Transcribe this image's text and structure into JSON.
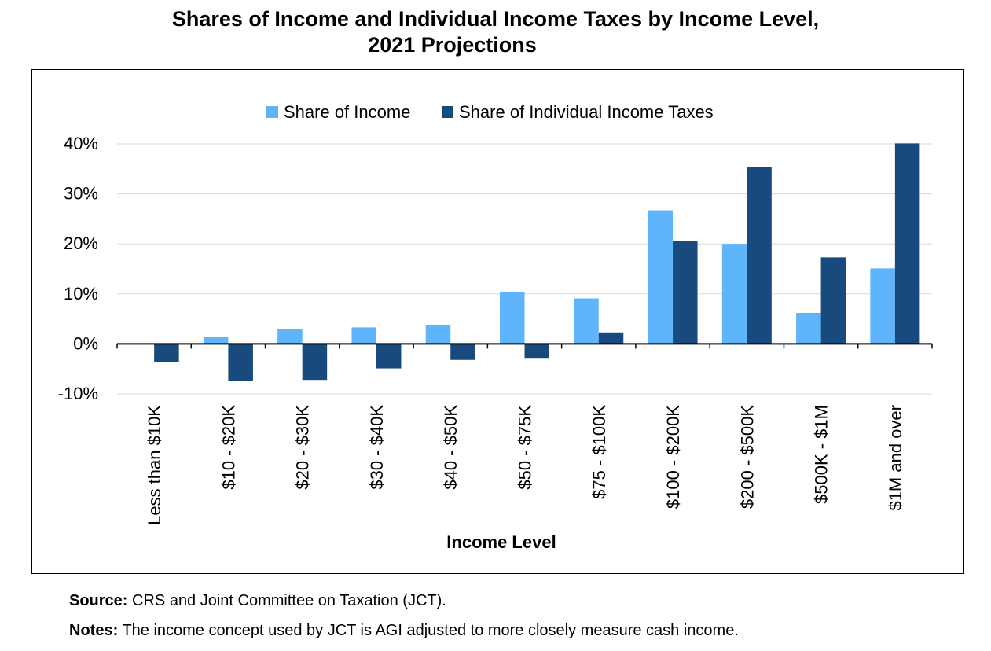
{
  "page": {
    "title_line1": "Shares of Income and Individual Income Taxes by Income Level,",
    "title_line2": "2021 Projections",
    "source_label": "Source:",
    "source_text": "CRS and Joint Committee on Taxation (JCT).",
    "notes_label": "Notes:",
    "notes_text": "The income concept used by JCT is AGI adjusted to more closely measure cash income."
  },
  "chart_data": {
    "type": "bar",
    "xlabel": "Income Level",
    "ylabel": "",
    "ylim": [
      -10,
      40
    ],
    "yticks": [
      -10,
      0,
      10,
      20,
      30,
      40
    ],
    "ytick_format": "percent",
    "grid": true,
    "legend_position": "top",
    "categories": [
      "Less than $10K",
      "$10 - $20K",
      "$20 - $30K",
      "$30 - $40K",
      "$40 - $50K",
      "$50 - $75K",
      "$75 - $100K",
      "$100 - $200K",
      "$200 - $500K",
      "$500K - $1M",
      "$1M and over"
    ],
    "series": [
      {
        "name": "Share of Income",
        "color": "#5eb5fc",
        "values": [
          0,
          1.4,
          2.9,
          3.3,
          3.7,
          10.3,
          9.1,
          26.7,
          20.0,
          6.2,
          15.1
        ]
      },
      {
        "name": "Share of Individual Income Taxes",
        "color": "#184a7e",
        "values": [
          -3.7,
          -7.4,
          -7.2,
          -4.9,
          -3.2,
          -2.8,
          2.3,
          20.5,
          35.3,
          17.3,
          40.1
        ]
      }
    ]
  }
}
